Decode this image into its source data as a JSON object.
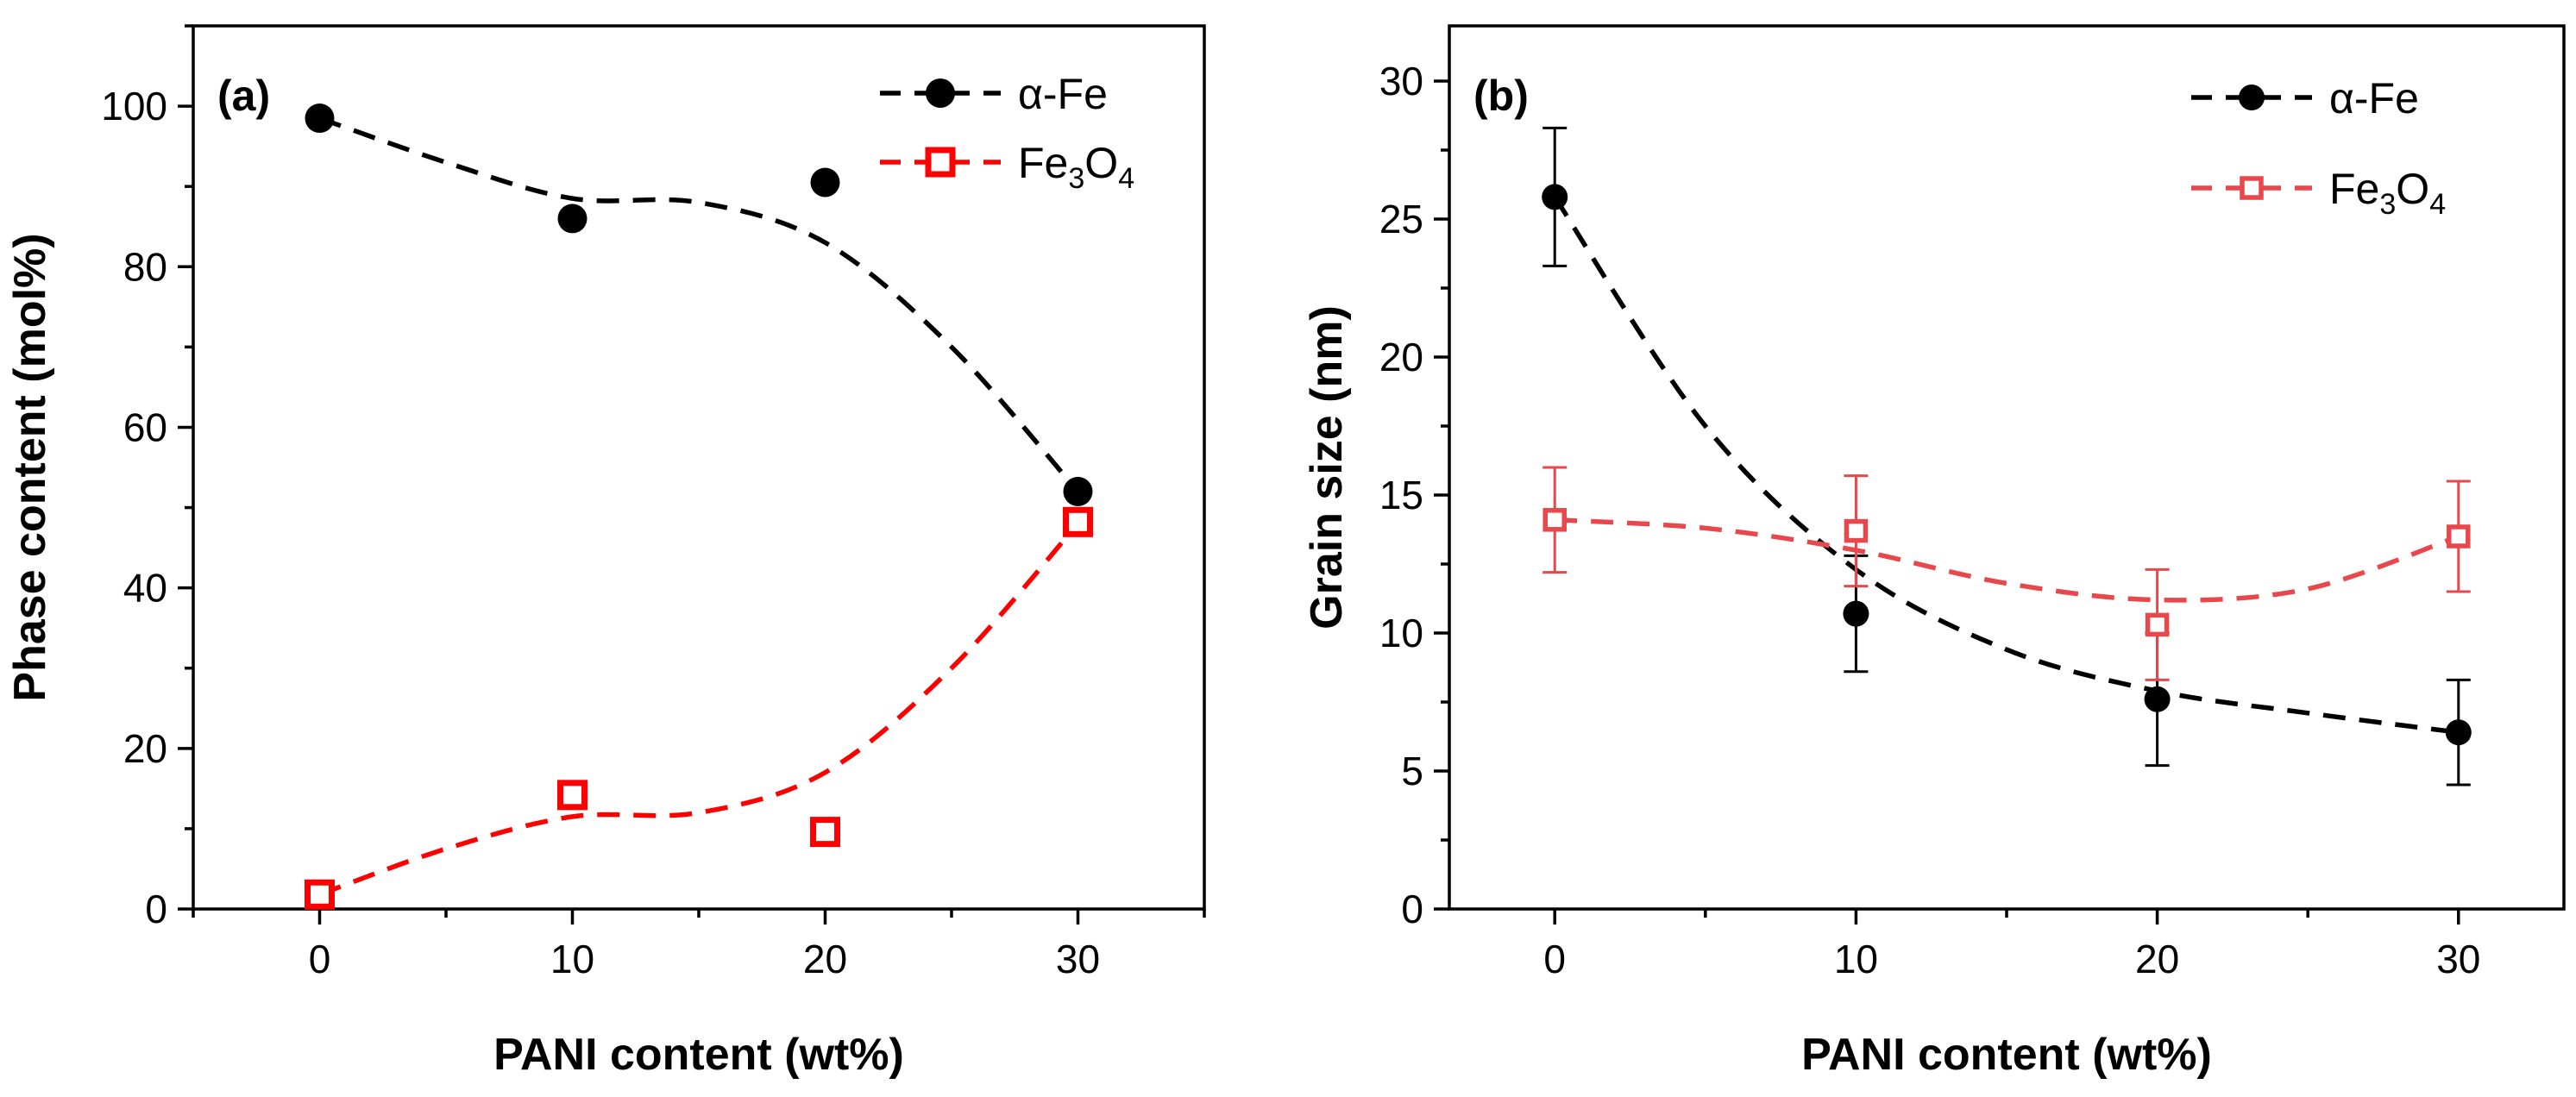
{
  "chart_data": [
    {
      "type": "scatter",
      "panel": "(a)",
      "xlabel": "PANI content (wt%)",
      "ylabel": "Phase content (mol%)",
      "xlim": [
        -5,
        35
      ],
      "ylim": [
        0,
        110
      ],
      "xticks": [
        0,
        10,
        20,
        30
      ],
      "yticks": [
        0,
        20,
        40,
        60,
        80,
        100
      ],
      "x_minor_step": 5,
      "y_minor_step": 10,
      "legend_position": "top-right",
      "series": [
        {
          "name": "α-Fe",
          "legend_main": "α-Fe",
          "color": "#000000",
          "marker": "filled-circle",
          "x": [
            0,
            10,
            20,
            30
          ],
          "y": [
            98.5,
            86,
            90.5,
            52
          ],
          "fit_curve_x": [
            0,
            5,
            10,
            15,
            20,
            25,
            30
          ],
          "fit_curve_y": [
            98.5,
            93,
            88.5,
            88,
            83,
            70,
            52
          ]
        },
        {
          "name": "Fe3O4",
          "legend_main": "Fe",
          "legend_sub1": "3",
          "legend_mid": "O",
          "legend_sub2": "4",
          "color": "#ff0000",
          "marker": "open-square",
          "x": [
            0,
            10,
            20,
            30
          ],
          "y": [
            1.8,
            14.2,
            9.6,
            48.2
          ],
          "fit_curve_x": [
            0,
            5,
            10,
            15,
            20,
            25,
            30
          ],
          "fit_curve_y": [
            1.8,
            7.5,
            11.5,
            12,
            17,
            30,
            48
          ]
        }
      ]
    },
    {
      "type": "scatter",
      "panel": "(b)",
      "xlabel": "PANI content (wt%)",
      "ylabel": "Grain size (nm)",
      "xlim": [
        -3.5,
        33.5
      ],
      "ylim": [
        0,
        32
      ],
      "xticks": [
        0,
        10,
        20,
        30
      ],
      "yticks": [
        0,
        5,
        10,
        15,
        20,
        25,
        30
      ],
      "x_minor_step": 5,
      "y_minor_step": 2.5,
      "legend_position": "top-right",
      "series": [
        {
          "name": "α-Fe",
          "legend_main": "α-Fe",
          "color": "#000000",
          "marker": "filled-circle",
          "x": [
            0,
            10,
            20,
            30
          ],
          "y": [
            25.8,
            10.7,
            7.6,
            6.4
          ],
          "yerr": [
            2.5,
            2.1,
            2.4,
            1.9
          ],
          "fit_curve_x": [
            0,
            5,
            10,
            15,
            20,
            25,
            30
          ],
          "fit_curve_y": [
            25.8,
            17.5,
            12.3,
            9.4,
            7.9,
            7.1,
            6.4
          ]
        },
        {
          "name": "Fe3O4",
          "legend_main": "Fe",
          "legend_sub1": "3",
          "legend_mid": "O",
          "legend_sub2": "4",
          "color": "#e8474b",
          "marker": "open-square",
          "x": [
            0,
            10,
            20,
            30
          ],
          "y": [
            14.1,
            13.7,
            10.3,
            13.5
          ],
          "yerr": [
            1.9,
            2.0,
            2.0,
            2.0
          ],
          "fit_curve_x": [
            0,
            5,
            10,
            15,
            20,
            25,
            30
          ],
          "fit_curve_y": [
            14.1,
            13.8,
            13.0,
            11.8,
            11.2,
            11.6,
            13.5
          ]
        }
      ]
    }
  ]
}
